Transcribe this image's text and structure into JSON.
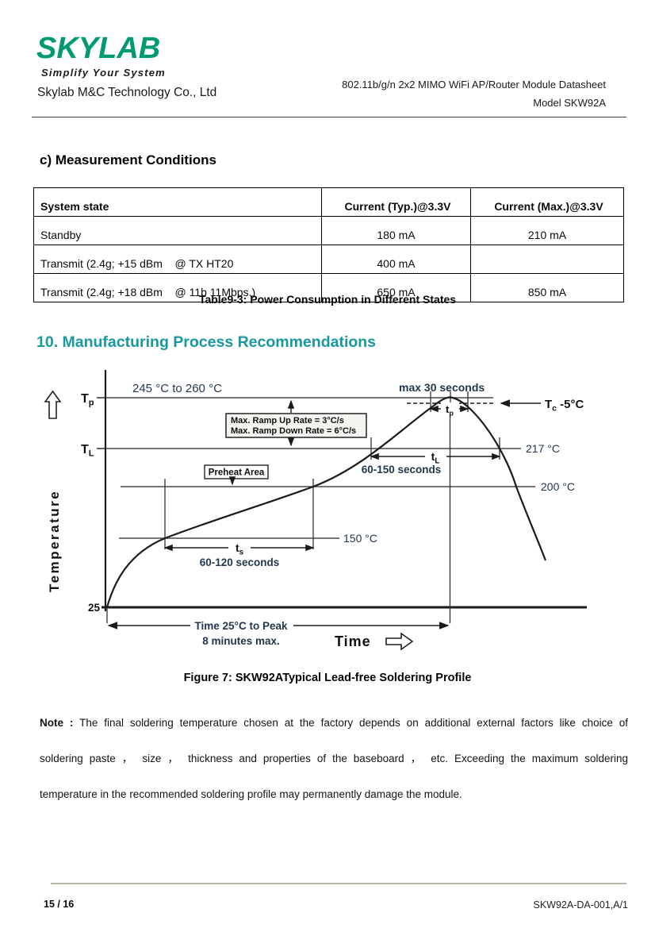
{
  "header": {
    "logo_text": "SKYLAB",
    "logo_tagline": "Simplify Your System",
    "logo_color": "#009a72",
    "company": "Skylab M&C Technology Co., Ltd",
    "doc_title": "802.11b/g/n 2x2 MIMO WiFi AP/Router Module Datasheet",
    "model": "Model SKW92A"
  },
  "measurement_section": {
    "heading": "c) Measurement Conditions"
  },
  "power_table": {
    "columns": [
      "System state",
      "Current (Typ.)@3.3V",
      "Current (Max.)@3.3V"
    ],
    "rows": [
      [
        "Standby",
        "180 mA",
        "210 mA"
      ],
      [
        "Transmit (2.4g; +15 dBm    @ TX HT20",
        "400 mA",
        ""
      ],
      [
        "Transmit (2.4g; +18 dBm    @ 11b 11Mbps.)",
        "650 mA",
        "850 mA"
      ]
    ],
    "caption": "Table9-3: Power Consumption in Different States"
  },
  "process_section": {
    "heading": "10. Manufacturing Process Recommendations",
    "accent_color": "#18989f"
  },
  "figure": {
    "temperature_axis": "Temperature",
    "time_axis": "Time",
    "tp": "T_p",
    "tl": "T_L",
    "tc": "T_c -5°C",
    "tp_meas": "t_p",
    "tl_meas": "t_L",
    "ts_meas": "t_s",
    "peak_range": "245 °C  to  260 °C",
    "peak_duration": "max 30 seconds",
    "ramp_up": "Max. Ramp Up Rate = 3°C/s",
    "ramp_down": "Max. Ramp Down Rate = 6°C/s",
    "preheat": "Preheat Area",
    "t217": "217 °C",
    "t200": "200 °C",
    "t150": "150 °C",
    "t25": "25",
    "tl_duration": "60-150 seconds",
    "ts_duration": "60-120 seconds",
    "time_to_peak": "Time 25°C to Peak",
    "time_to_peak_limit": "8 minutes max.",
    "caption": "Figure 7: SKW92ATypical Lead-free Soldering Profile"
  },
  "chart_data": {
    "type": "line",
    "title": "SKW92A Typical Lead-free Soldering Profile",
    "xlabel": "Time",
    "ylabel": "Temperature",
    "y_reference_lines_c": [
      25,
      150,
      200,
      217,
      245,
      260
    ],
    "profile": [
      {
        "phase": "start",
        "temp_c": 25
      },
      {
        "phase": "preheat (ts)",
        "temp_range_c": "150-200",
        "duration": "60-120 seconds"
      },
      {
        "phase": "above liquidus (tL, 217 °C)",
        "duration": "60-150 seconds"
      },
      {
        "phase": "peak (tp)",
        "temp_range_c": "245-260",
        "duration": "max 30 seconds",
        "tc_window": "Tc -5°C"
      },
      {
        "phase": "ramp rates",
        "max_ramp_up": "3°C/s",
        "max_ramp_down": "6°C/s"
      },
      {
        "phase": "time 25°C to peak",
        "limit": "8 minutes max."
      }
    ]
  },
  "note": {
    "label": "Note :",
    "lines": [
      "The final soldering temperature chosen at the factory depends on additional external factors like choice of",
      "soldering paste ， size ， thickness and properties of the baseboard ， etc.  Exceeding the maximum soldering",
      "temperature in the recommended soldering profile may permanently damage the module."
    ]
  },
  "footer": {
    "page_number": "15 / 16",
    "doc_ref": "SKW92A-DA-001,A/1"
  }
}
